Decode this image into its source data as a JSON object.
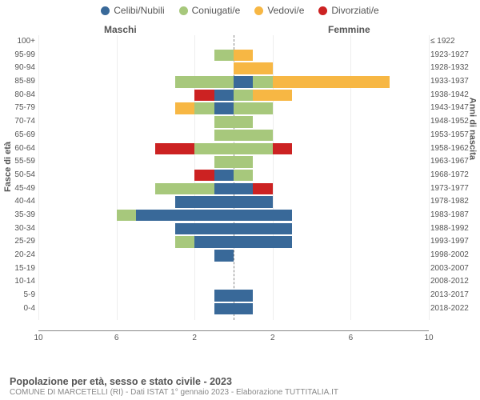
{
  "colors": {
    "celibi": "#396999",
    "coniugati": "#a7c87c",
    "vedovi": "#f7b744",
    "divorziati": "#cc2222",
    "grid": "#eeeeee",
    "axis": "#888888",
    "text": "#555555"
  },
  "legend": [
    {
      "label": "Celibi/Nubili",
      "color": "celibi"
    },
    {
      "label": "Coniugati/e",
      "color": "coniugati"
    },
    {
      "label": "Vedovi/e",
      "color": "vedovi"
    },
    {
      "label": "Divorziati/e",
      "color": "divorziati"
    }
  ],
  "side_labels": {
    "left": "Maschi",
    "right": "Femmine"
  },
  "y_titles": {
    "left": "Fasce di età",
    "right": "Anni di nascita"
  },
  "x_axis": {
    "max": 10,
    "ticks_left": [
      10,
      6,
      2
    ],
    "ticks_right": [
      2,
      6,
      10
    ]
  },
  "footer": {
    "title": "Popolazione per età, sesso e stato civile - 2023",
    "sub": "COMUNE DI MARCETELLI (RI) - Dati ISTAT 1° gennaio 2023 - Elaborazione TUTTITALIA.IT"
  },
  "rows": [
    {
      "age": "100+",
      "birth": "≤ 1922",
      "m": {
        "cel": 0,
        "con": 0,
        "ved": 0,
        "div": 0
      },
      "f": {
        "cel": 0,
        "con": 0,
        "ved": 0,
        "div": 0
      }
    },
    {
      "age": "95-99",
      "birth": "1923-1927",
      "m": {
        "cel": 0,
        "con": 1,
        "ved": 0,
        "div": 0
      },
      "f": {
        "cel": 0,
        "con": 0,
        "ved": 1,
        "div": 0
      }
    },
    {
      "age": "90-94",
      "birth": "1928-1932",
      "m": {
        "cel": 0,
        "con": 0,
        "ved": 0,
        "div": 0
      },
      "f": {
        "cel": 0,
        "con": 0,
        "ved": 2,
        "div": 0
      }
    },
    {
      "age": "85-89",
      "birth": "1933-1937",
      "m": {
        "cel": 0,
        "con": 3,
        "ved": 0,
        "div": 0
      },
      "f": {
        "cel": 1,
        "con": 1,
        "ved": 6,
        "div": 0
      }
    },
    {
      "age": "80-84",
      "birth": "1938-1942",
      "m": {
        "cel": 1,
        "con": 0,
        "ved": 0,
        "div": 1
      },
      "f": {
        "cel": 0,
        "con": 1,
        "ved": 2,
        "div": 0
      }
    },
    {
      "age": "75-79",
      "birth": "1943-1947",
      "m": {
        "cel": 1,
        "con": 1,
        "ved": 1,
        "div": 0
      },
      "f": {
        "cel": 0,
        "con": 2,
        "ved": 0,
        "div": 0
      }
    },
    {
      "age": "70-74",
      "birth": "1948-1952",
      "m": {
        "cel": 0,
        "con": 1,
        "ved": 0,
        "div": 0
      },
      "f": {
        "cel": 0,
        "con": 1,
        "ved": 0,
        "div": 0
      }
    },
    {
      "age": "65-69",
      "birth": "1953-1957",
      "m": {
        "cel": 0,
        "con": 1,
        "ved": 0,
        "div": 0
      },
      "f": {
        "cel": 0,
        "con": 2,
        "ved": 0,
        "div": 0
      }
    },
    {
      "age": "60-64",
      "birth": "1958-1962",
      "m": {
        "cel": 0,
        "con": 2,
        "ved": 0,
        "div": 2
      },
      "f": {
        "cel": 0,
        "con": 2,
        "ved": 0,
        "div": 1
      }
    },
    {
      "age": "55-59",
      "birth": "1963-1967",
      "m": {
        "cel": 0,
        "con": 1,
        "ved": 0,
        "div": 0
      },
      "f": {
        "cel": 0,
        "con": 1,
        "ved": 0,
        "div": 0
      }
    },
    {
      "age": "50-54",
      "birth": "1968-1972",
      "m": {
        "cel": 1,
        "con": 0,
        "ved": 0,
        "div": 1
      },
      "f": {
        "cel": 0,
        "con": 1,
        "ved": 0,
        "div": 0
      }
    },
    {
      "age": "45-49",
      "birth": "1973-1977",
      "m": {
        "cel": 1,
        "con": 3,
        "ved": 0,
        "div": 0
      },
      "f": {
        "cel": 1,
        "con": 0,
        "ved": 0,
        "div": 1
      }
    },
    {
      "age": "40-44",
      "birth": "1978-1982",
      "m": {
        "cel": 3,
        "con": 0,
        "ved": 0,
        "div": 0
      },
      "f": {
        "cel": 2,
        "con": 0,
        "ved": 0,
        "div": 0
      }
    },
    {
      "age": "35-39",
      "birth": "1983-1987",
      "m": {
        "cel": 5,
        "con": 1,
        "ved": 0,
        "div": 0
      },
      "f": {
        "cel": 3,
        "con": 0,
        "ved": 0,
        "div": 0
      }
    },
    {
      "age": "30-34",
      "birth": "1988-1992",
      "m": {
        "cel": 3,
        "con": 0,
        "ved": 0,
        "div": 0
      },
      "f": {
        "cel": 3,
        "con": 0,
        "ved": 0,
        "div": 0
      }
    },
    {
      "age": "25-29",
      "birth": "1993-1997",
      "m": {
        "cel": 2,
        "con": 1,
        "ved": 0,
        "div": 0
      },
      "f": {
        "cel": 3,
        "con": 0,
        "ved": 0,
        "div": 0
      }
    },
    {
      "age": "20-24",
      "birth": "1998-2002",
      "m": {
        "cel": 1,
        "con": 0,
        "ved": 0,
        "div": 0
      },
      "f": {
        "cel": 0,
        "con": 0,
        "ved": 0,
        "div": 0
      }
    },
    {
      "age": "15-19",
      "birth": "2003-2007",
      "m": {
        "cel": 0,
        "con": 0,
        "ved": 0,
        "div": 0
      },
      "f": {
        "cel": 0,
        "con": 0,
        "ved": 0,
        "div": 0
      }
    },
    {
      "age": "10-14",
      "birth": "2008-2012",
      "m": {
        "cel": 0,
        "con": 0,
        "ved": 0,
        "div": 0
      },
      "f": {
        "cel": 0,
        "con": 0,
        "ved": 0,
        "div": 0
      }
    },
    {
      "age": "5-9",
      "birth": "2013-2017",
      "m": {
        "cel": 1,
        "con": 0,
        "ved": 0,
        "div": 0
      },
      "f": {
        "cel": 1,
        "con": 0,
        "ved": 0,
        "div": 0
      }
    },
    {
      "age": "0-4",
      "birth": "2018-2022",
      "m": {
        "cel": 1,
        "con": 0,
        "ved": 0,
        "div": 0
      },
      "f": {
        "cel": 1,
        "con": 0,
        "ved": 0,
        "div": 0
      }
    }
  ]
}
